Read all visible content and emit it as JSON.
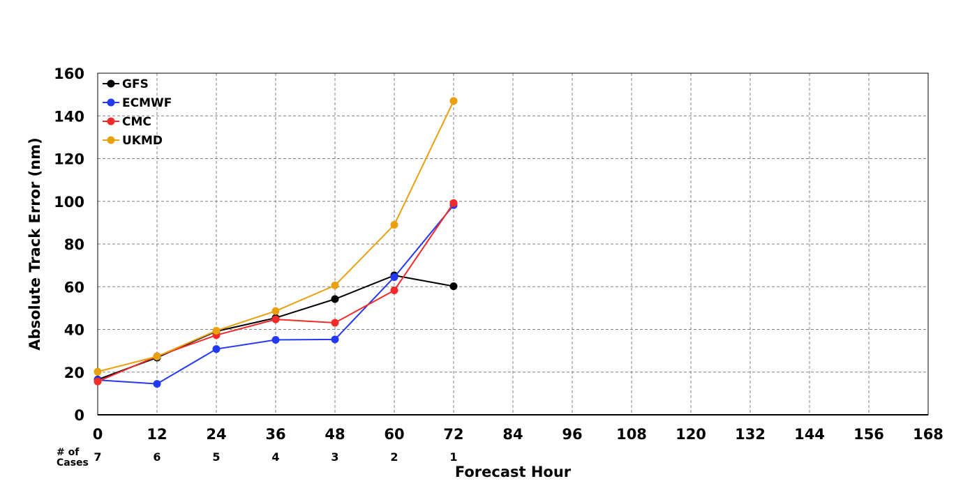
{
  "chart_data": {
    "type": "line",
    "xlabel": "Forecast Hour",
    "ylabel": "Absolute Track Error (nm)",
    "xlim": [
      0,
      168
    ],
    "ylim": [
      0,
      160
    ],
    "x_ticks": [
      0,
      12,
      24,
      36,
      48,
      60,
      72,
      84,
      96,
      108,
      120,
      132,
      144,
      156,
      168
    ],
    "y_ticks": [
      0,
      20,
      40,
      60,
      80,
      100,
      120,
      140,
      160
    ],
    "grid": true,
    "legend_position": "top-left",
    "x": [
      0,
      12,
      24,
      36,
      48,
      60,
      72
    ],
    "series": [
      {
        "name": "GFS",
        "color": "#000000",
        "values": [
          16.5,
          26.8,
          39.1,
          45.4,
          54.2,
          65.3,
          60.2
        ]
      },
      {
        "name": "ECMWF",
        "color": "#2238f2",
        "values": [
          16.3,
          14.5,
          30.8,
          35.1,
          35.3,
          64.5,
          98.2
        ]
      },
      {
        "name": "CMC",
        "color": "#f22a2a",
        "values": [
          15.6,
          27.4,
          37.3,
          44.7,
          43.1,
          58.3,
          99.2
        ]
      },
      {
        "name": "UKMD",
        "color": "#e8a00c",
        "values": [
          20.2,
          27.3,
          39.4,
          48.6,
          60.6,
          89.0,
          147.0
        ]
      }
    ],
    "cases": {
      "label_line1": "# of",
      "label_line2": "Cases",
      "x": [
        0,
        12,
        24,
        36,
        48,
        60,
        72
      ],
      "counts": [
        "7",
        "6",
        "5",
        "4",
        "3",
        "2",
        "1"
      ]
    }
  }
}
